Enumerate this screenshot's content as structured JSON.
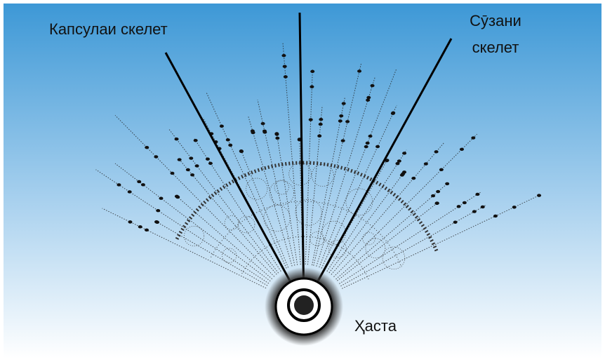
{
  "labels": {
    "capsule": "Капсулаи скелет",
    "spicule": [
      "Сӯзани",
      "скелет"
    ],
    "body": "Ҳаста"
  }
}
